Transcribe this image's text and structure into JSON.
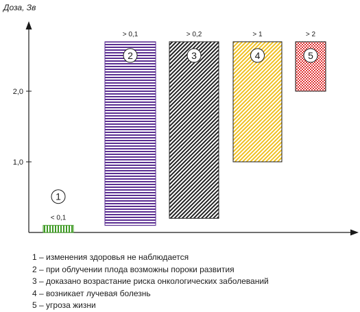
{
  "chart_data": {
    "type": "bar",
    "ylabel": "Доза, Зв",
    "yticks": [
      "1,0",
      "2,0"
    ],
    "ylim": [
      0,
      3
    ],
    "grid": false,
    "bars": [
      {
        "number": "1",
        "label": "< 0,1",
        "from": 0,
        "to": 0.1,
        "color": "#3d9a22",
        "pattern": "vertical-stripes"
      },
      {
        "number": "2",
        "label": "> 0,1",
        "from": 0.1,
        "to": 2.7,
        "color": "#5a2d91",
        "pattern": "horizontal-stripes"
      },
      {
        "number": "3",
        "label": "> 0,2",
        "from": 0.2,
        "to": 2.7,
        "color": "#222222",
        "pattern": "diagonal-stripes"
      },
      {
        "number": "4",
        "label": "> 1",
        "from": 1.0,
        "to": 2.7,
        "color": "#f0c020",
        "pattern": "diagonal-stripes"
      },
      {
        "number": "5",
        "label": "> 2",
        "from": 2.0,
        "to": 2.7,
        "color": "#e03030",
        "pattern": "checkerboard"
      }
    ]
  },
  "legend": [
    "1 – изменения здоровья не наблюдается",
    "2 – при облучении плода возможны пороки развития",
    "3 – доказано возрастание риска онкологических заболеваний",
    "4 – возникает лучевая болезнь",
    "5 – угроза жизни"
  ]
}
